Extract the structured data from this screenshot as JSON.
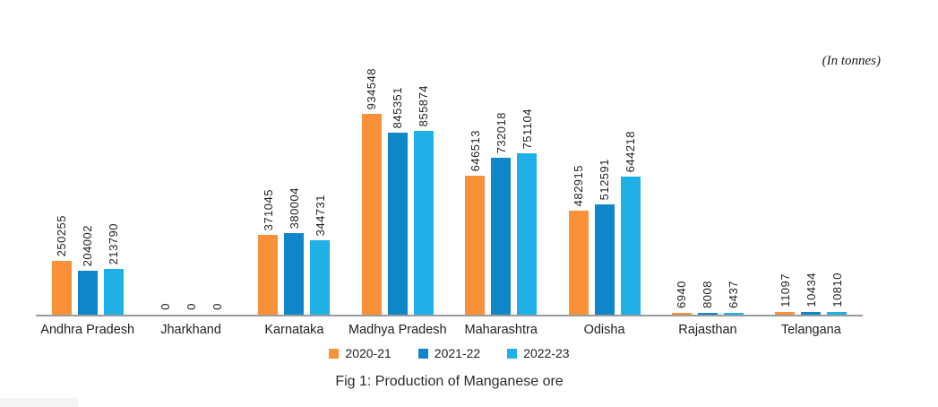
{
  "units_note": "(In tonnes)",
  "chart_data": {
    "type": "bar",
    "title": "Fig 1: Production of Manganese ore",
    "units": "tonnes",
    "categories": [
      "Andhra Pradesh",
      "Jharkhand",
      "Karnataka",
      "Madhya Pradesh",
      "Maharashtra",
      "Odisha",
      "Rajasthan",
      "Telangana"
    ],
    "series": [
      {
        "name": "2020-21",
        "color": "#FA9038",
        "values": [
          250255,
          0,
          371045,
          934548,
          646513,
          482915,
          6940,
          11097
        ]
      },
      {
        "name": "2021-22",
        "color": "#0E86C8",
        "values": [
          204002,
          0,
          380004,
          845351,
          732018,
          512591,
          8008,
          10434
        ]
      },
      {
        "name": "2022-23",
        "color": "#1FB0E8",
        "values": [
          213790,
          0,
          344731,
          855874,
          751104,
          644218,
          6437,
          10810
        ]
      }
    ],
    "ylim": [
      0,
      934548
    ],
    "grid": false,
    "y_axis_visible": false,
    "value_labels": "rotated-90-above-bars",
    "legend_position": "bottom",
    "axis_line_color": "#9b9b9b"
  }
}
